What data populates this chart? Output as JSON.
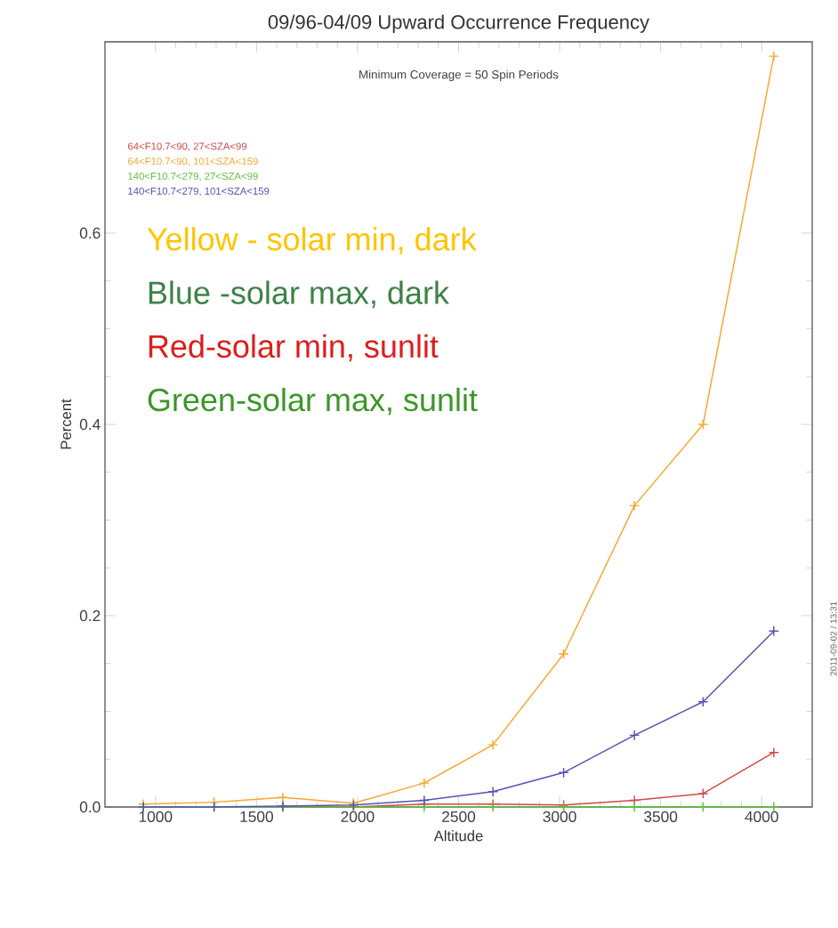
{
  "chart_data": {
    "type": "line",
    "title": "09/96-04/09 Upward Occurrence Frequency",
    "xlabel": "Altitude",
    "ylabel": "Percent",
    "annotations": [
      "Minimum Coverage = 50 Spin Periods",
      "Yellow - solar min, dark",
      "Blue -solar max, dark",
      "Red-solar min, sunlit",
      "Green-solar max, sunlit",
      "2011-09-02 / 13:31"
    ],
    "x": [
      940,
      1290,
      1630,
      1980,
      2330,
      2670,
      3020,
      3370,
      3710,
      4060
    ],
    "series": [
      {
        "name": "64<F10.7<90, 27<SZA<99",
        "color": "#d04848",
        "values": [
          null,
          null,
          0,
          0,
          0.003,
          0.003,
          0.002,
          0.007,
          0.014,
          0.057
        ]
      },
      {
        "name": "64<F10.7<90, 101<SZA<159",
        "color": "#f5a830",
        "values": [
          0.003,
          0.005,
          0.01,
          0.004,
          0.025,
          0.065,
          0.16,
          0.315,
          0.4,
          0.785
        ]
      },
      {
        "name": "140<F10.7<279, 27<SZA<99",
        "color": "#60c040",
        "values": [
          0,
          0,
          0,
          0,
          0,
          0,
          0,
          0,
          0,
          0
        ]
      },
      {
        "name": "140<F10.7<279, 101<SZA<159",
        "color": "#5454b4",
        "values": [
          0,
          0,
          0.001,
          0.002,
          0.007,
          0.016,
          0.036,
          0.075,
          0.11,
          0.184
        ]
      }
    ],
    "xlim": [
      750,
      4250
    ],
    "ylim": [
      0,
      0.8
    ],
    "xticks": [
      1000,
      1500,
      2000,
      2500,
      3000,
      3500,
      4000
    ],
    "yticks": [
      {
        "value": 0,
        "label": "0.0"
      },
      {
        "value": 0.2,
        "label": "0.2"
      },
      {
        "value": 0.4,
        "label": "0.4"
      },
      {
        "value": 0.6,
        "label": "0.6"
      }
    ],
    "legend": "top left",
    "marker": "cross",
    "line_style": "solid",
    "grid": false
  }
}
